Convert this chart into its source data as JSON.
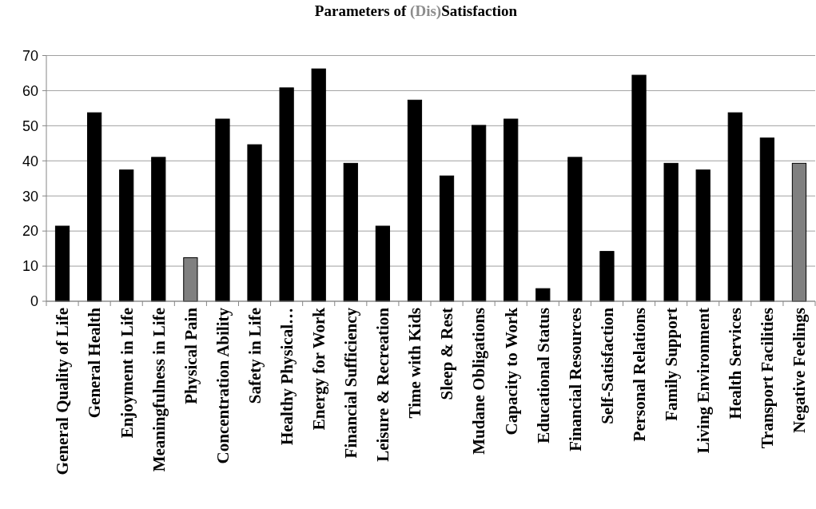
{
  "chart_data": {
    "type": "bar",
    "title": "Parameters of (Dis)Satisfaction",
    "categories": [
      "General Quality of Life",
      "General Health",
      "Enjoyment in Life",
      "Meaningfulness in Life",
      "Physical Pain",
      "Concentration Ability",
      "Safety in Life",
      "Healthy Physical…",
      "Energy for Work",
      "Financial Sufficiency",
      "Leisure & Recreation",
      "Time with Kids",
      "Sleep & Rest",
      "Mudane Obligations",
      "Capacity to Work",
      "Educational Status",
      "Financial Resources",
      "Self-Satisfaction",
      "Personal Relations",
      "Family Support",
      "Living Environment",
      "Health Services",
      "Transport Facilities",
      "Negative Feelings"
    ],
    "values": [
      21.4,
      53.7,
      37.4,
      41.0,
      12.4,
      51.9,
      44.6,
      60.8,
      66.2,
      39.3,
      21.4,
      57.3,
      35.7,
      50.1,
      51.9,
      3.6,
      41.0,
      14.2,
      64.4,
      39.3,
      37.4,
      53.7,
      46.5,
      39.3
    ],
    "colors": [
      "#000000",
      "#000000",
      "#000000",
      "#000000",
      "#808080",
      "#000000",
      "#000000",
      "#000000",
      "#000000",
      "#000000",
      "#000000",
      "#000000",
      "#000000",
      "#000000",
      "#000000",
      "#000000",
      "#000000",
      "#000000",
      "#000000",
      "#000000",
      "#000000",
      "#000000",
      "#000000",
      "#808080"
    ],
    "ylim": [
      0,
      70
    ],
    "yticks": [
      0,
      10,
      20,
      30,
      40,
      50,
      60,
      70
    ],
    "grid": "y"
  }
}
